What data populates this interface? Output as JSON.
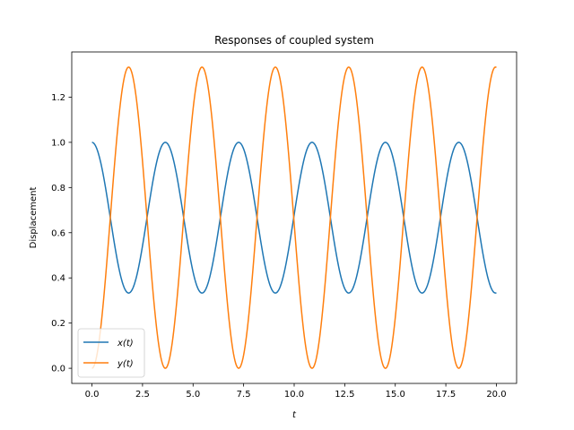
{
  "chart_data": {
    "type": "line",
    "title": "Responses of coupled system",
    "xlabel": "t",
    "ylabel": "Displacement",
    "xlim": [
      -1.0,
      21.0
    ],
    "ylim": [
      -0.067,
      1.4
    ],
    "xticks": [
      0.0,
      2.5,
      5.0,
      7.5,
      10.0,
      12.5,
      15.0,
      17.5,
      20.0
    ],
    "xtick_labels": [
      "0.0",
      "2.5",
      "5.0",
      "7.5",
      "10.0",
      "12.5",
      "15.0",
      "17.5",
      "20.0"
    ],
    "yticks": [
      0.0,
      0.2,
      0.4,
      0.6,
      0.8,
      1.0,
      1.2
    ],
    "ytick_labels": [
      "0.0",
      "0.2",
      "0.4",
      "0.6",
      "0.8",
      "1.0",
      "1.2"
    ],
    "grid": false,
    "legend_position": "lower-left",
    "period": 3.628,
    "series": [
      {
        "name": "x(t)",
        "color": "#1f77b4",
        "x": [
          0.0,
          0.91,
          1.81,
          2.72,
          3.63,
          4.54,
          5.44,
          6.35,
          7.26,
          8.16,
          9.07,
          9.98,
          10.88,
          11.79,
          12.7,
          13.6,
          14.51,
          15.42,
          16.33,
          17.23,
          18.14,
          19.05,
          20.0
        ],
        "values": [
          1.0,
          0.667,
          0.333,
          0.667,
          1.0,
          0.667,
          0.333,
          0.667,
          1.0,
          0.667,
          0.333,
          0.667,
          1.0,
          0.667,
          0.333,
          0.667,
          1.0,
          0.667,
          0.333,
          0.667,
          1.0,
          0.667,
          0.333
        ]
      },
      {
        "name": "y(t)",
        "color": "#ff7f0e",
        "x": [
          0.0,
          0.91,
          1.81,
          2.72,
          3.63,
          4.54,
          5.44,
          6.35,
          7.26,
          8.16,
          9.07,
          9.98,
          10.88,
          11.79,
          12.7,
          13.6,
          14.51,
          15.42,
          16.33,
          17.23,
          18.14,
          19.05,
          20.0
        ],
        "values": [
          0.0,
          0.667,
          1.333,
          0.667,
          0.0,
          0.667,
          1.333,
          0.667,
          0.0,
          0.667,
          1.333,
          0.667,
          0.0,
          0.667,
          1.333,
          0.667,
          0.0,
          0.667,
          1.333,
          0.667,
          0.0,
          0.667,
          1.333
        ]
      }
    ]
  }
}
